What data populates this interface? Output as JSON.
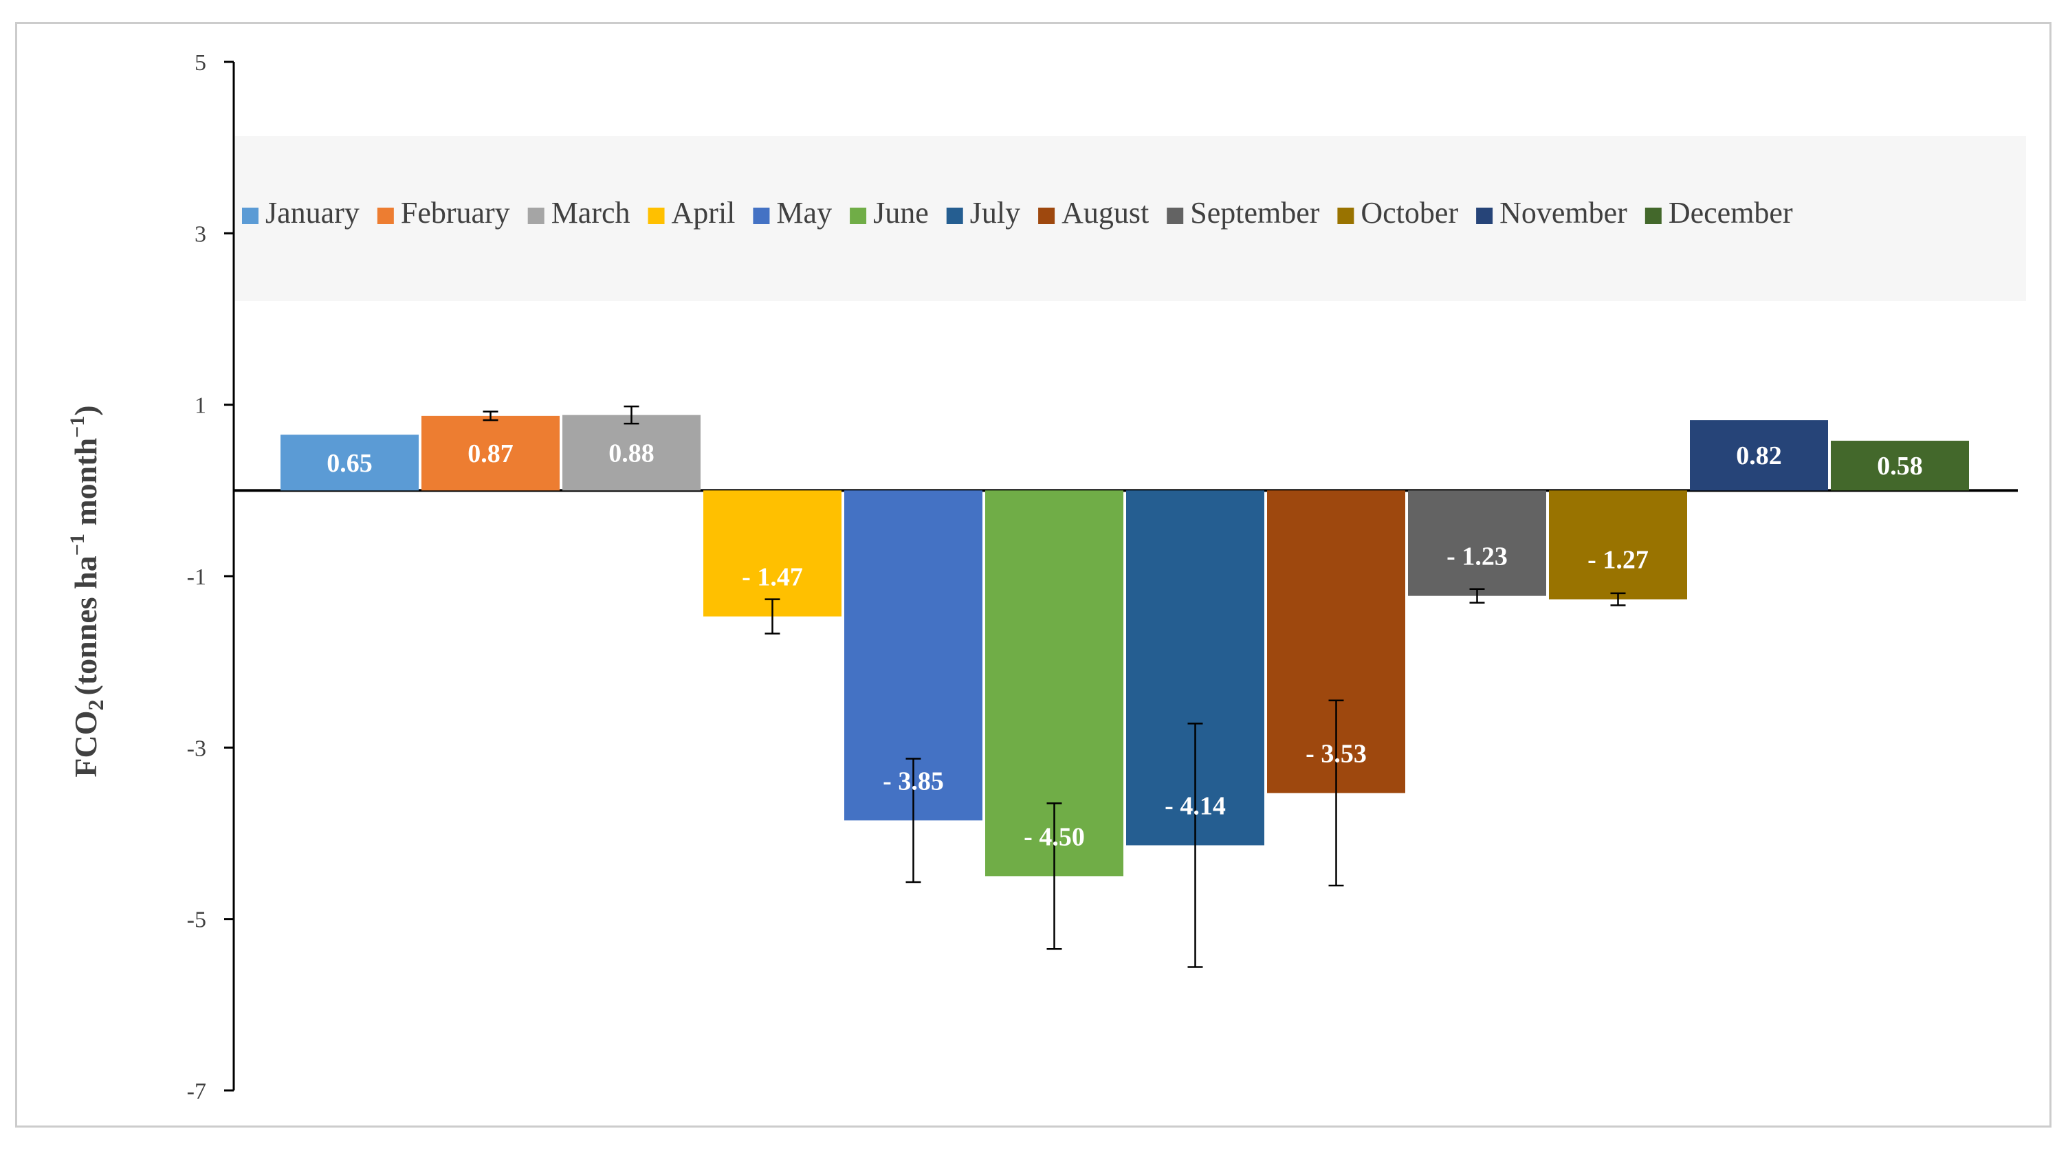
{
  "chart_data": {
    "type": "bar",
    "title": "",
    "xlabel": "",
    "ylabel": {
      "base": "FCO",
      "sub": "2",
      "unit_open": "(tonnes ha",
      "sup1": "−1",
      "unit_mid": " month",
      "sup2": "−1",
      "unit_close": ")"
    },
    "ylim": [
      -7,
      5
    ],
    "yticks": [
      5,
      3,
      1,
      -1,
      -3,
      -5,
      -7
    ],
    "legend_position": "top",
    "grid": false,
    "series": [
      {
        "name": "January",
        "value": 0.65,
        "label": "0.65",
        "error": null,
        "color": "#5b9bd5"
      },
      {
        "name": "February",
        "value": 0.87,
        "label": "0.87",
        "error": 0.05,
        "color": "#ed7d31"
      },
      {
        "name": "March",
        "value": 0.88,
        "label": "0.88",
        "error": 0.1,
        "color": "#a5a5a5"
      },
      {
        "name": "April",
        "value": -1.47,
        "label": "- 1.47",
        "error": 0.2,
        "color": "#ffc000"
      },
      {
        "name": "May",
        "value": -3.85,
        "label": "- 3.85",
        "error": 0.72,
        "color": "#4472c4"
      },
      {
        "name": "June",
        "value": -4.5,
        "label": "- 4.50",
        "error": 0.85,
        "color": "#70ad47"
      },
      {
        "name": "July",
        "value": -4.14,
        "label": "- 4.14",
        "error": 1.42,
        "color": "#255e91"
      },
      {
        "name": "August",
        "value": -3.53,
        "label": "- 3.53",
        "error": 1.08,
        "color": "#9e480e"
      },
      {
        "name": "September",
        "value": -1.23,
        "label": "- 1.23",
        "error": 0.08,
        "color": "#636363"
      },
      {
        "name": "October",
        "value": -1.27,
        "label": "- 1.27",
        "error": 0.07,
        "color": "#997300"
      },
      {
        "name": "November",
        "value": 0.82,
        "label": "0.82",
        "error": null,
        "color": "#264478"
      },
      {
        "name": "December",
        "value": 0.58,
        "label": "0.58",
        "error": null,
        "color": "#43682b"
      }
    ]
  }
}
